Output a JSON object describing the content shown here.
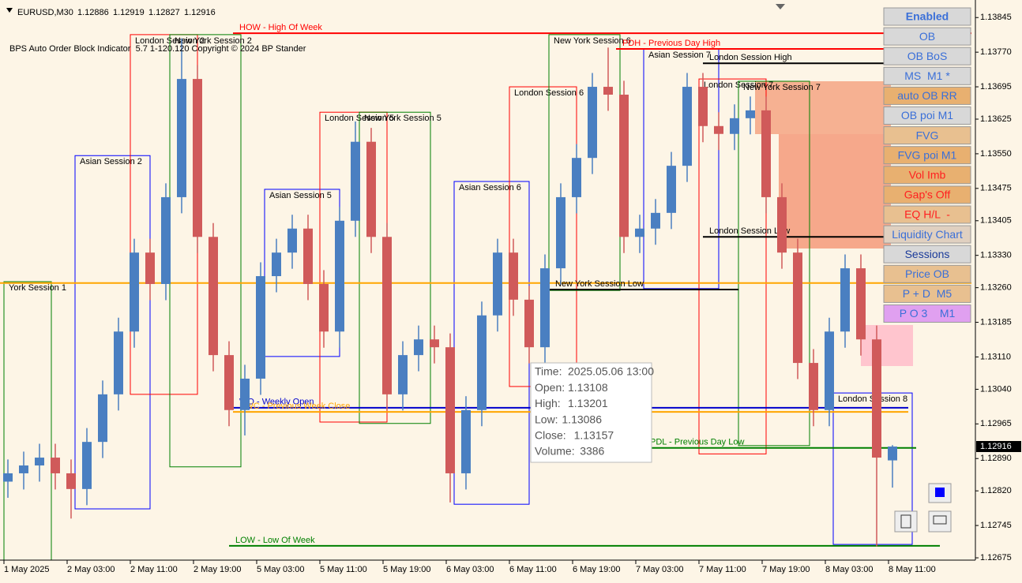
{
  "header": {
    "symbol": "EURUSD,M30"
  },
  "indicator": "BPS Auto Order Block Indicator  5.7 1-120.120 Copyright © 2024 BP Stander",
  "chart_data": {
    "type": "candlestick",
    "up_color": "#4a7fc1",
    "down_color": "#d05a5a",
    "x": [
      1,
      5,
      9,
      13,
      17,
      21,
      25,
      29,
      33,
      37,
      41,
      45,
      49,
      53,
      57,
      61,
      65,
      69,
      73,
      77,
      81,
      85,
      89,
      93,
      97,
      101,
      105,
      109,
      113,
      117,
      121,
      125,
      129,
      133,
      137,
      141,
      145,
      149,
      153,
      157,
      161,
      165,
      169,
      173,
      177,
      181,
      185,
      189,
      193,
      197,
      201,
      205,
      209,
      213,
      217,
      221,
      225
    ],
    "open": [
      1.1284,
      1.12858,
      1.12875,
      1.12892,
      1.12858,
      1.12824,
      1.12926,
      1.13029,
      1.13165,
      1.13336,
      1.13268,
      1.13456,
      1.13712,
      1.1337,
      1.13114,
      1.12995,
      1.13063,
      1.13285,
      1.13336,
      1.13388,
      1.13268,
      1.13165,
      1.13405,
      1.13576,
      1.1337,
      1.13029,
      1.13114,
      1.13148,
      1.13131,
      1.12858,
      1.12995,
      1.132,
      1.13336,
      1.13234,
      1.13131,
      1.13302,
      1.13456,
      1.13541,
      1.13695,
      1.13678,
      1.1337,
      1.13388,
      1.13422,
      1.13524,
      1.13695,
      1.1361,
      1.13593,
      1.13627,
      1.13644,
      1.13456,
      1.13336,
      1.13097,
      1.12995,
      1.13165,
      1.13302,
      1.13148,
      1.12886
    ],
    "high": [
      1.12888,
      1.12905,
      1.12922,
      1.12922,
      1.12888,
      1.12956,
      1.13059,
      1.13195,
      1.13366,
      1.13366,
      1.13486,
      1.138,
      1.13742,
      1.134,
      1.13144,
      1.13093,
      1.13315,
      1.13366,
      1.13418,
      1.13418,
      1.13298,
      1.13435,
      1.1362,
      1.13606,
      1.134,
      1.13144,
      1.13178,
      1.13178,
      1.13161,
      1.13025,
      1.1323,
      1.13366,
      1.13366,
      1.13264,
      1.13332,
      1.13486,
      1.13571,
      1.13725,
      1.1378,
      1.13708,
      1.13418,
      1.13452,
      1.13554,
      1.13725,
      1.13725,
      1.1364,
      1.13657,
      1.13674,
      1.13674,
      1.13486,
      1.13366,
      1.13127,
      1.13195,
      1.13332,
      1.13332,
      1.13178,
      1.12919
    ],
    "low": [
      1.12805,
      1.12823,
      1.1284,
      1.12823,
      1.1276,
      1.12789,
      1.12891,
      1.12994,
      1.1313,
      1.13233,
      1.13233,
      1.13421,
      1.13335,
      1.13079,
      1.1296,
      1.1294,
      1.13028,
      1.1325,
      1.13301,
      1.13233,
      1.1313,
      1.1313,
      1.1337,
      1.13335,
      1.12994,
      1.12994,
      1.13079,
      1.13096,
      1.12795,
      1.12823,
      1.1296,
      1.13165,
      1.13199,
      1.13096,
      1.13096,
      1.13267,
      1.13421,
      1.13506,
      1.13643,
      1.13335,
      1.13335,
      1.13353,
      1.13387,
      1.13489,
      1.13575,
      1.13558,
      1.13558,
      1.13592,
      1.13421,
      1.13301,
      1.13062,
      1.1296,
      1.1296,
      1.1313,
      1.13113,
      1.127,
      1.12827
    ],
    "close": [
      1.12858,
      1.12875,
      1.12892,
      1.12858,
      1.12824,
      1.12926,
      1.13029,
      1.13165,
      1.13336,
      1.13268,
      1.13456,
      1.13712,
      1.1337,
      1.13114,
      1.12995,
      1.13063,
      1.13285,
      1.13336,
      1.13388,
      1.13268,
      1.13165,
      1.13405,
      1.13576,
      1.1337,
      1.13029,
      1.13114,
      1.13148,
      1.13131,
      1.12858,
      1.12995,
      1.132,
      1.13336,
      1.13234,
      1.13131,
      1.13302,
      1.13456,
      1.13541,
      1.13695,
      1.13678,
      1.1337,
      1.13388,
      1.13422,
      1.13524,
      1.13695,
      1.1361,
      1.13593,
      1.13627,
      1.13644,
      1.13456,
      1.13336,
      1.13097,
      1.12995,
      1.13165,
      1.13302,
      1.13148,
      1.12892,
      1.12916
    ],
    "xlim": [
      -1,
      246
    ],
    "ylim": [
      1.1267,
      1.13883
    ],
    "xticks": [
      {
        "value": 0,
        "label": "1 May 2025"
      },
      {
        "value": 16,
        "label": "2 May 03:00"
      },
      {
        "value": 32,
        "label": "2 May 11:00"
      },
      {
        "value": 48,
        "label": "2 May 19:00"
      },
      {
        "value": 64,
        "label": "5 May 03:00"
      },
      {
        "value": 80,
        "label": "5 May 11:00"
      },
      {
        "value": 96,
        "label": "5 May 19:00"
      },
      {
        "value": 112,
        "label": "6 May 03:00"
      },
      {
        "value": 128,
        "label": "6 May 11:00"
      },
      {
        "value": 144,
        "label": "6 May 19:00"
      },
      {
        "value": 160,
        "label": "7 May 03:00"
      },
      {
        "value": 176,
        "label": "7 May 11:00"
      },
      {
        "value": 192,
        "label": "7 May 19:00"
      },
      {
        "value": 208,
        "label": "8 May 03:00"
      },
      {
        "value": 224,
        "label": "8 May 11:00"
      }
    ],
    "yticks": [
      1.13845,
      {
        "value": 1.1377,
        "label": "1.13770"
      },
      1.13695,
      1.13625,
      {
        "value": 1.1355,
        "label": "1.13550"
      },
      1.13475,
      1.13405,
      {
        "value": 1.1333,
        "label": "1.13330"
      },
      {
        "value": 1.1326,
        "label": "1.13260"
      },
      1.13185,
      {
        "value": 1.1311,
        "label": "1.13110"
      },
      {
        "value": 1.1304,
        "label": "1.13040"
      },
      1.12965,
      {
        "value": 1.1289,
        "label": "1.12890"
      },
      {
        "value": 1.1282,
        "label": "1.12820"
      },
      1.12745,
      1.12675
    ],
    "sessions": [
      {
        "name": "York Session 1",
        "color": "#008000",
        "start": 0,
        "end": 12,
        "top": 1.13273,
        "bottom": 1.1267
      },
      {
        "name": "Asian Session 2",
        "color": "#0000ff",
        "start": 18,
        "end": 37,
        "top": 1.13546,
        "bottom": 1.12781
      },
      {
        "name": "London Session 2",
        "color": "#ff0000",
        "start": 32,
        "end": 49,
        "top": 1.13808,
        "bottom": 1.13029
      },
      {
        "name": "New York Session 2",
        "color": "#008000",
        "start": 42,
        "end": 60,
        "top": 1.13808,
        "bottom": 1.12872
      },
      {
        "name": "Asian Session 5",
        "color": "#0000ff",
        "start": 66,
        "end": 85,
        "top": 1.13473,
        "bottom": 1.13111
      },
      {
        "name": "London Session 5",
        "color": "#ff0000",
        "start": 80,
        "end": 97,
        "top": 1.1364,
        "bottom": 1.12969
      },
      {
        "name": "New York Session 5",
        "color": "#008000",
        "start": 90,
        "end": 108,
        "top": 1.1364,
        "bottom": 1.12966
      },
      {
        "name": "Asian Session 6",
        "color": "#0000ff",
        "start": 114,
        "end": 133,
        "top": 1.1349,
        "bottom": 1.12791
      },
      {
        "name": "London Session 6",
        "color": "#ff0000",
        "start": 128,
        "end": 145,
        "top": 1.13695,
        "bottom": 1.13046
      },
      {
        "name": "New York Session 6",
        "color": "#008000",
        "start": 138,
        "end": 156,
        "top": 1.13808,
        "bottom": 1.13254
      },
      {
        "name": "Asian Session 7",
        "color": "#0000ff",
        "start": 162,
        "end": 181,
        "top": 1.13777,
        "bottom": 1.13258
      },
      {
        "name": "London Session 7",
        "color": "#ff0000",
        "start": 176,
        "end": 193,
        "top": 1.13712,
        "bottom": 1.129
      },
      {
        "name": "New York Session 7",
        "color": "#008000",
        "start": 186,
        "end": 204,
        "top": 1.13707,
        "bottom": 1.12918
      },
      {
        "name": "London Session 8",
        "color": "#0000ff",
        "start": 210,
        "end": 230,
        "top": 1.13032,
        "bottom": 1.12704
      }
    ],
    "levels": [
      {
        "label": "HOW - High Of Week",
        "color": "#ff0000",
        "price": 1.13811,
        "start": 58,
        "end": 245
      },
      {
        "label": "PDH - Previous Day High",
        "color": "#ff0000",
        "price": 1.13777,
        "start": 155,
        "end": 223
      },
      {
        "label": "London Session High",
        "color": "#000000",
        "price": 1.13746,
        "start": 177,
        "end": 225
      },
      {
        "label": "London Session Low",
        "color": "#000000",
        "price": 1.1337,
        "start": 177,
        "end": 225
      },
      {
        "color": "#ffa500",
        "price": 1.1327,
        "start": -1,
        "end": 245
      },
      {
        "label": "New York Session Low",
        "color": "#000000",
        "price": 1.13256,
        "start": 138,
        "end": 186
      },
      {
        "label": "WO - Weekly Open",
        "color": "#0000cc",
        "price": 1.13,
        "start": 58,
        "end": 229
      },
      {
        "label": "PWC - Previous Week Close",
        "color": "#ffa500",
        "price": 1.12991,
        "start": 58,
        "end": 229
      },
      {
        "label": "PDL - Previous Day Low",
        "color": "#008000",
        "price": 1.12913,
        "start": 162,
        "end": 231
      },
      {
        "label": "LOW - Low Of Week",
        "color": "#008000",
        "price": 1.12701,
        "start": 57,
        "end": 237
      }
    ]
  },
  "tooltip": [
    {
      "label": "Time:",
      "value": "2025.05.06 13:00"
    },
    {
      "label": "Open:",
      "value": 1.13108
    },
    {
      "label": "High:",
      "value": 1.13201
    },
    {
      "label": "Low:",
      "value": 1.13086
    },
    {
      "label": "Close:",
      "value": 1.13157
    },
    {
      "label": "Volume:",
      "value": 3386
    }
  ],
  "panel": {
    "buttons": [
      {
        "label": "Enabled",
        "bg": "#d8d8d8",
        "fg": "#3a6fd8"
      },
      {
        "label": "OB",
        "bg": "#d8d8d8",
        "fg": "#3a6fd8"
      },
      {
        "label": "OB BoS",
        "bg": "#d8d8d8",
        "fg": "#3a6fd8"
      },
      {
        "label": "MS  M1 *",
        "bg": "#d8d8d8",
        "fg": "#3a6fd8"
      },
      {
        "label": "auto OB RR",
        "bg": "#e8b070",
        "fg": "#3a6fd8"
      },
      {
        "label": "OB poi M1",
        "bg": "#d8d8d8",
        "fg": "#3a6fd8"
      },
      {
        "label": "FVG",
        "bg": "#e8c090",
        "fg": "#3a6fd8"
      },
      {
        "label": "FVG poi M1",
        "bg": "#e8b070",
        "fg": "#3a6fd8"
      },
      {
        "label": "Vol Imb",
        "bg": "#e8b070",
        "fg": "#ff2020"
      },
      {
        "label": "Gap's Off",
        "bg": "#e8b070",
        "fg": "#ff2020"
      },
      {
        "label": "EQ H/L  -",
        "bg": "#e8c090",
        "fg": "#ff2020"
      },
      {
        "label": "Liquidity Chart",
        "bg": "#e0d0c0",
        "fg": "#3a6fd8"
      },
      {
        "label": "Sessions",
        "bg": "#d8d8d8",
        "fg": "#1a3a9a"
      },
      {
        "label": "Price OB",
        "bg": "#e8c090",
        "fg": "#3a6fd8"
      },
      {
        "label": "P + D  M5",
        "bg": "#e8c090",
        "fg": "#3a6fd8"
      },
      {
        "label": "P O 3    M1",
        "bg": "#e0a0f0",
        "fg": "#3a6fd8"
      }
    ]
  }
}
